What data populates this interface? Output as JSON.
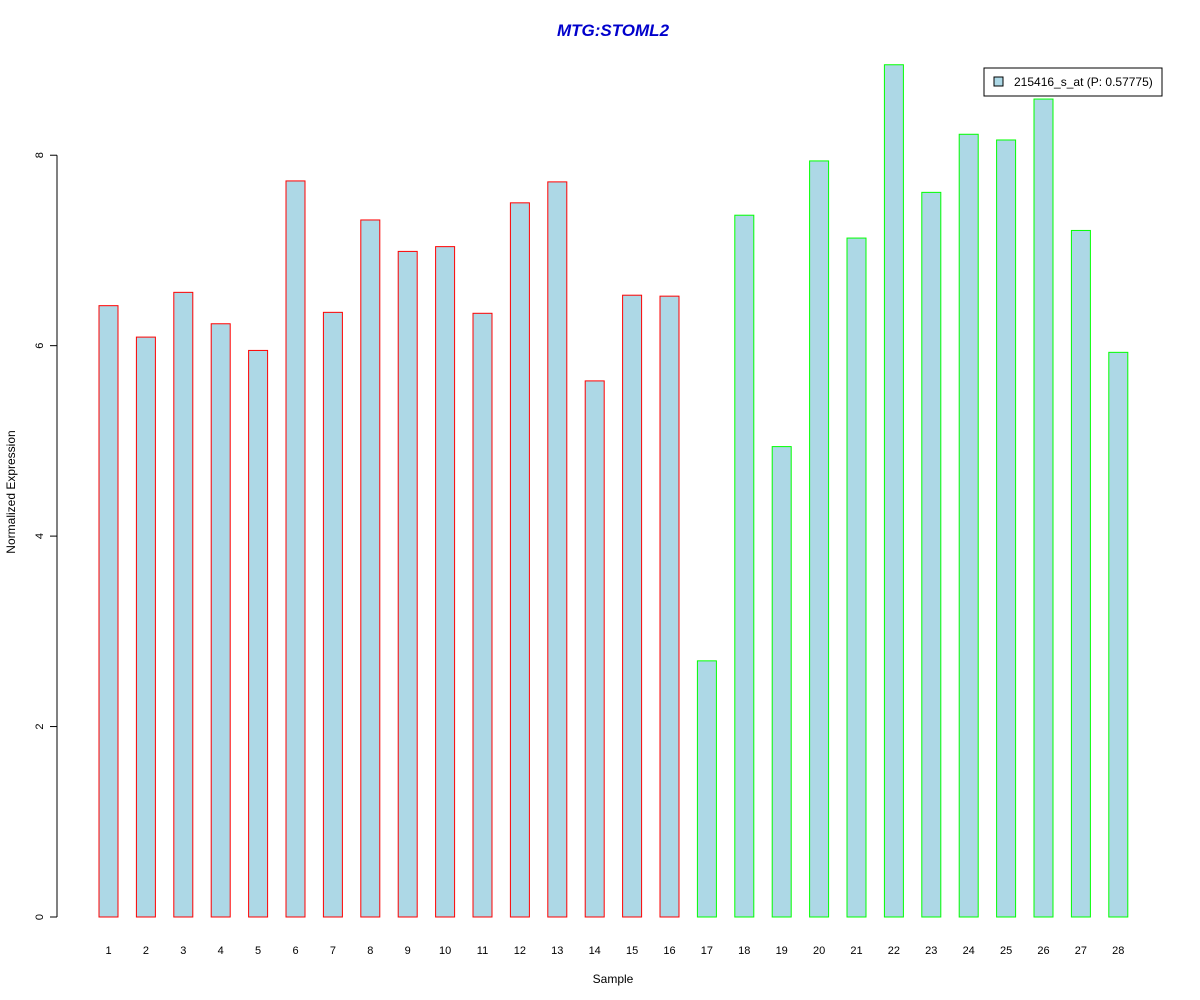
{
  "chart_data": {
    "type": "bar",
    "title": "MTG:STOML2",
    "xlabel": "Sample",
    "ylabel": "Normalized Expression",
    "categories": [
      "1",
      "2",
      "3",
      "4",
      "5",
      "6",
      "7",
      "8",
      "9",
      "10",
      "11",
      "12",
      "13",
      "14",
      "15",
      "16",
      "17",
      "18",
      "19",
      "20",
      "21",
      "22",
      "23",
      "24",
      "25",
      "26",
      "27",
      "28"
    ],
    "values": [
      6.42,
      6.09,
      6.56,
      6.23,
      5.95,
      7.73,
      6.35,
      7.32,
      6.99,
      7.04,
      6.34,
      7.5,
      7.72,
      5.63,
      6.53,
      6.52,
      2.69,
      7.37,
      4.94,
      7.94,
      7.13,
      8.95,
      7.61,
      8.22,
      8.16,
      8.59,
      7.21,
      5.93
    ],
    "groups": [
      "red",
      "red",
      "red",
      "red",
      "red",
      "red",
      "red",
      "red",
      "red",
      "red",
      "red",
      "red",
      "red",
      "red",
      "red",
      "red",
      "green",
      "green",
      "green",
      "green",
      "green",
      "green",
      "green",
      "green",
      "green",
      "green",
      "green",
      "green"
    ],
    "yticks": [
      0,
      2,
      4,
      6,
      8
    ],
    "ylim": [
      0,
      9.0
    ],
    "grid": false,
    "legend": {
      "entry": "215416_s_at (P: 0.57775)",
      "position": "top-right"
    },
    "colors": {
      "bar_fill": "#add8e6",
      "border_group1": "#ff0000",
      "border_group2": "#00ff00",
      "title": "#0000cc"
    }
  }
}
